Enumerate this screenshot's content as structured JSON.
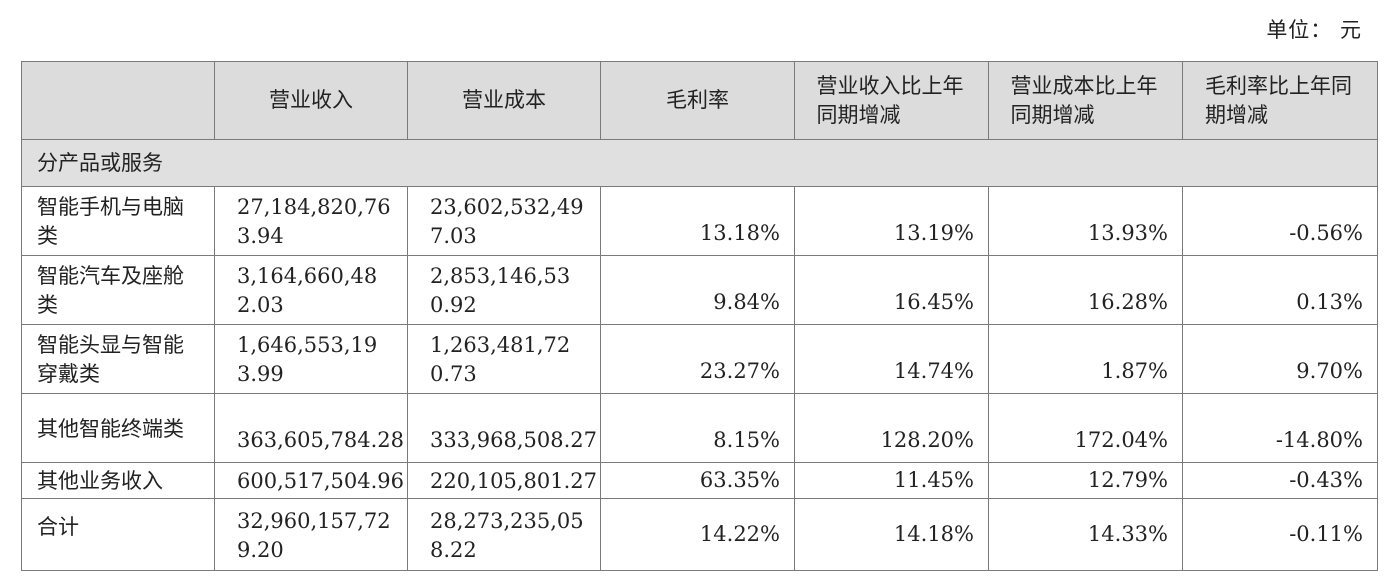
{
  "unit_label": "单位： 元",
  "table": {
    "header_corner": "",
    "headers": [
      "营业收入",
      "营业成本",
      "毛利率",
      "营业收入比上年同期增减",
      "营业成本比上年同期增减",
      "毛利率比上年同期增减"
    ],
    "section_label": "分产品或服务",
    "rows": [
      {
        "name": "智能手机与电脑类",
        "revenue": "27,184,820,763.94",
        "cost": "23,602,532,497.03",
        "margin": "13.18%",
        "rev_change": "13.19%",
        "cost_change": "13.93%",
        "margin_change": "-0.56%"
      },
      {
        "name": "智能汽车及座舱类",
        "revenue": "3,164,660,482.03",
        "cost": "2,853,146,530.92",
        "margin": "9.84%",
        "rev_change": "16.45%",
        "cost_change": "16.28%",
        "margin_change": "0.13%"
      },
      {
        "name": "智能头显与智能穿戴类",
        "revenue": "1,646,553,193.99",
        "cost": "1,263,481,720.73",
        "margin": "23.27%",
        "rev_change": "14.74%",
        "cost_change": "1.87%",
        "margin_change": "9.70%"
      },
      {
        "name": "其他智能终端类",
        "revenue": "363,605,784.28",
        "cost": "333,968,508.27",
        "margin": "8.15%",
        "rev_change": "128.20%",
        "cost_change": "172.04%",
        "margin_change": "-14.80%"
      },
      {
        "name": "其他业务收入",
        "revenue": "600,517,504.96",
        "cost": "220,105,801.27",
        "margin": "63.35%",
        "rev_change": "11.45%",
        "cost_change": "12.79%",
        "margin_change": "-0.43%"
      },
      {
        "name": "合计",
        "revenue": "32,960,157,729.20",
        "cost": "28,273,235,058.22",
        "margin": "14.22%",
        "rev_change": "14.18%",
        "cost_change": "14.33%",
        "margin_change": "-0.11%"
      }
    ]
  }
}
